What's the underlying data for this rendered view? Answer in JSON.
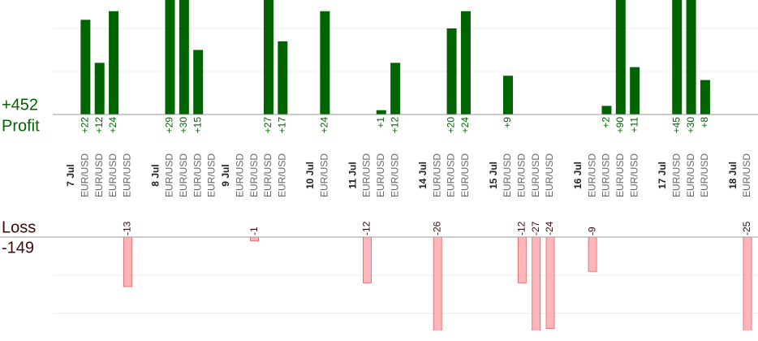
{
  "chart_data": {
    "type": "bar",
    "profit_total": "+452",
    "profit_label": "Profit",
    "loss_label": "Loss",
    "loss_total": "-149",
    "categories": [
      "7 Jul",
      "EUR/USD",
      "EUR/USD",
      "EUR/USD",
      "EUR/USD",
      null,
      "8 Jul",
      "EUR/USD",
      "EUR/USD",
      "EUR/USD",
      "EUR/USD",
      "9 Jul",
      "EUR/USD",
      "EUR/USD",
      "EUR/USD",
      "EUR/USD",
      null,
      "10 Jul",
      "EUR/USD",
      null,
      "11 Jul",
      "EUR/USD",
      "EUR/USD",
      "EUR/USD",
      null,
      "14 Jul",
      "EUR/USD",
      "EUR/USD",
      "EUR/USD",
      null,
      "15 Jul",
      "EUR/USD",
      "EUR/USD",
      "EUR/USD",
      "EUR/USD",
      null,
      "16 Jul",
      "EUR/USD",
      "EUR/USD",
      "EUR/USD",
      "EUR/USD",
      null,
      "17 Jul",
      "EUR/USD",
      "EUR/USD",
      "EUR/USD",
      null,
      "18 Jul",
      "EUR/USD"
    ],
    "values": [
      null,
      22,
      12,
      24,
      -13,
      null,
      null,
      29,
      30,
      15,
      null,
      null,
      null,
      -1,
      27,
      17,
      null,
      null,
      24,
      null,
      null,
      -12,
      1,
      12,
      null,
      null,
      -26,
      20,
      24,
      null,
      null,
      9,
      -12,
      -27,
      -24,
      null,
      null,
      -9,
      2,
      90,
      11,
      null,
      null,
      45,
      30,
      8,
      null,
      null,
      -25
    ],
    "value_labels": [
      null,
      "+22",
      "+12",
      "+24",
      "-13",
      null,
      null,
      "+29",
      "+30",
      "+15",
      null,
      null,
      null,
      "-1",
      "+27",
      "+17",
      null,
      null,
      "+24",
      null,
      null,
      "-12",
      "+1",
      "+12",
      null,
      null,
      "-26",
      "+20",
      "+24",
      null,
      null,
      "+9",
      "-12",
      "-27",
      "-24",
      null,
      null,
      "-9",
      "+2",
      "+90",
      "+11",
      null,
      null,
      "+45",
      "+30",
      "+8",
      null,
      null,
      "-25"
    ],
    "profit_color": "#006400",
    "loss_color": "#ffb6bb",
    "loss_edge": "#e06060",
    "ylim": [
      0,
      26.6
    ],
    "yticks": [
      10,
      20
    ],
    "y2lim": [
      -24.5,
      0
    ],
    "y2ticks": [
      -10,
      -20
    ],
    "grid": true
  }
}
